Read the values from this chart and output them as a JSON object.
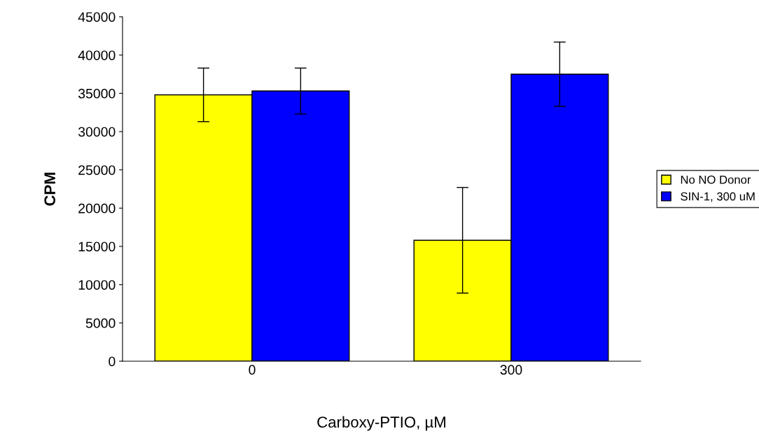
{
  "chart_data": {
    "type": "bar",
    "xlabel": "Carboxy-PTIO, µM",
    "ylabel": "CPM",
    "categories": [
      "0",
      "300"
    ],
    "series": [
      {
        "name": "No NO Donor",
        "color": "#ffff00",
        "values": [
          34800,
          15800
        ],
        "errors": [
          3500,
          6900
        ]
      },
      {
        "name": "SIN-1, 300 uM",
        "color": "#0000ff",
        "values": [
          35300,
          37500
        ],
        "errors": [
          3000,
          4200
        ]
      }
    ],
    "ylim": [
      0,
      45000
    ],
    "yticks": [
      0,
      5000,
      10000,
      15000,
      20000,
      25000,
      30000,
      35000,
      40000,
      45000
    ],
    "grid": false,
    "legend": "right"
  }
}
